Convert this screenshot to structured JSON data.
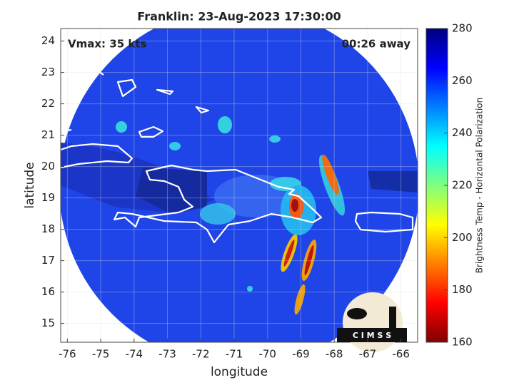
{
  "chart_data": {
    "type": "map",
    "title": "Franklin: 23-Aug-2023 17:30:00",
    "xlabel": "longitude",
    "ylabel": "latitude",
    "xlim": [
      -76.2,
      -65.5
    ],
    "ylim": [
      14.4,
      24.4
    ],
    "xticks": [
      -76,
      -75,
      -74,
      -73,
      -72,
      -71,
      -70,
      -69,
      -68,
      -67,
      -66
    ],
    "yticks": [
      15,
      16,
      17,
      18,
      19,
      20,
      21,
      22,
      23,
      24
    ],
    "grid": true,
    "annotations": [
      "Vmax: 35 kts",
      "00:26 away"
    ],
    "logo": "C I M S S",
    "colorbar": {
      "label": "Brightness Temp - Horizontal Polarization",
      "colormap": "jet",
      "lim": [
        160,
        280
      ],
      "ticks": [
        160,
        180,
        200,
        220,
        240,
        260,
        280
      ]
    }
  }
}
